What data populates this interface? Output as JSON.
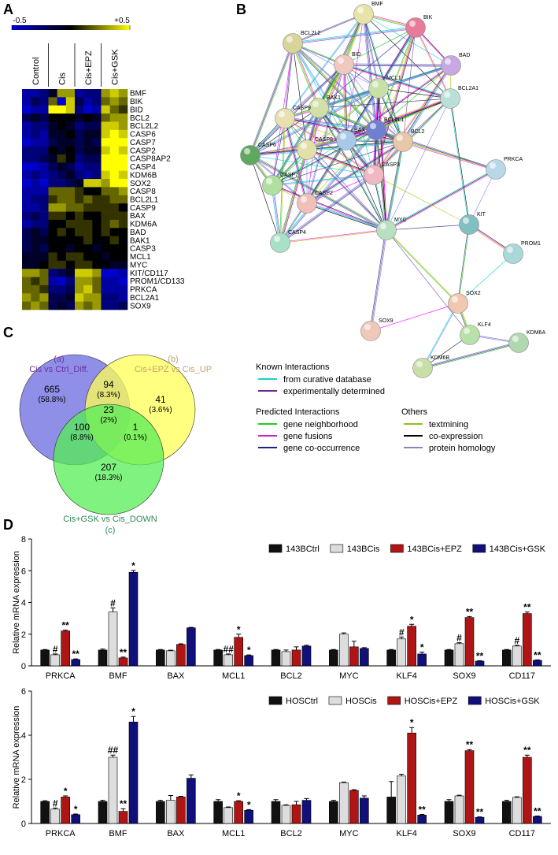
{
  "panels": [
    "A",
    "B",
    "C",
    "D"
  ],
  "chart_data": [
    {
      "type": "heatmap",
      "groups": [
        "Control",
        "Cis",
        "Cis+EPZ",
        "Cis+GSK"
      ],
      "rows": [
        "BMF",
        "BIK",
        "BID",
        "BCL2",
        "BCL2L2",
        "CASP6",
        "CASP7",
        "CASP2",
        "CASP8AP2",
        "CASP4",
        "KDM6B",
        "SOX2",
        "CASP8",
        "BCL2L1",
        "CASP9",
        "BAX",
        "KDM6A",
        "BAD",
        "BAK1",
        "CASP3",
        "MCL1",
        "MYC",
        "KIT/CD117",
        "PROM1/CD133",
        "PRKCA",
        "BCL2A1",
        "SOX9"
      ],
      "clim": [
        -0.5,
        0.5
      ],
      "cticks": [
        -0.5,
        {
          "value": 0.5,
          "label": "+0.5"
        }
      ],
      "colors": [
        "#0000cc",
        "#000000",
        "#ffff00"
      ],
      "values": [
        [
          -0.4,
          -0.4,
          -0.3,
          -0.1,
          0.3,
          0.3,
          -0.4,
          -0.3,
          -0.3,
          0.3,
          0.4,
          0.3
        ],
        [
          -0.4,
          -0.2,
          -0.3,
          0.2,
          -0.5,
          0.4,
          -0.2,
          -0.4,
          -0.3,
          0.2,
          0.3,
          0.2
        ],
        [
          -0.5,
          -0.4,
          -0.4,
          0.5,
          0.5,
          0.4,
          -0.3,
          -0.5,
          -0.4,
          0.4,
          0.2,
          0.1
        ],
        [
          -0.2,
          -0.1,
          -0.2,
          0,
          0,
          0,
          -0.1,
          0,
          -0.1,
          0.2,
          0.3,
          0.3
        ],
        [
          -0.4,
          -0.3,
          -0.3,
          -0.1,
          0,
          -0.1,
          -0.3,
          -0.2,
          -0.2,
          0.4,
          0.4,
          0.3
        ],
        [
          -0.4,
          -0.3,
          -0.4,
          -0.1,
          -0.1,
          0,
          -0.2,
          -0.1,
          -0.1,
          0.4,
          0.5,
          0.4
        ],
        [
          -0.5,
          -0.4,
          -0.4,
          -0.2,
          -0.1,
          -0.1,
          -0.2,
          -0.1,
          -0.2,
          0.5,
          0.5,
          0.5
        ],
        [
          -0.3,
          -0.3,
          -0.3,
          0,
          -0.1,
          0,
          -0.2,
          -0.1,
          -0.1,
          0.4,
          0.5,
          0.4
        ],
        [
          -0.3,
          -0.3,
          -0.2,
          -0.1,
          0.1,
          0,
          -0.3,
          -0.2,
          -0.2,
          0.5,
          0.5,
          0.5
        ],
        [
          -0.5,
          -0.5,
          -0.4,
          -0.2,
          -0.1,
          -0.2,
          -0.4,
          -0.3,
          -0.3,
          0.5,
          0.5,
          0.5
        ],
        [
          -0.4,
          -0.3,
          -0.4,
          -0.3,
          -0.2,
          -0.1,
          -0.3,
          -0.4,
          -0.3,
          0.4,
          0.5,
          0.4
        ],
        [
          -0.5,
          -0.4,
          -0.5,
          -0.3,
          -0.3,
          -0.2,
          -0.1,
          0.4,
          0.4,
          0.3,
          0.5,
          0.5
        ],
        [
          -0.4,
          -0.4,
          -0.4,
          0.2,
          0.2,
          0.2,
          0.1,
          0,
          0,
          0.2,
          0.2,
          0.3
        ],
        [
          -0.4,
          -0.3,
          -0.3,
          0.1,
          0.2,
          0.2,
          0.1,
          0.2,
          0.1,
          0.1,
          0.2,
          0.2
        ],
        [
          -0.4,
          -0.4,
          -0.3,
          0.3,
          0.3,
          0.2,
          0.2,
          0.1,
          0.1,
          0.1,
          0.1,
          0
        ],
        [
          -0.3,
          -0.2,
          -0.3,
          0.1,
          0.1,
          0,
          0.1,
          0,
          0,
          0.1,
          0.1,
          0.1
        ],
        [
          -0.4,
          -0.3,
          -0.3,
          0,
          0,
          0.1,
          0.1,
          0.1,
          0,
          0.1,
          0.2,
          0.1
        ],
        [
          -0.2,
          -0.1,
          -0.2,
          0,
          0.1,
          0,
          0.1,
          0.1,
          0,
          0.1,
          0,
          0
        ],
        [
          -0.2,
          -0.1,
          -0.1,
          0,
          0,
          0,
          0,
          0.1,
          0,
          0,
          0.1,
          0
        ],
        [
          -0.2,
          -0.1,
          -0.2,
          0,
          0,
          -0.1,
          0,
          0,
          -0.1,
          0,
          0,
          0
        ],
        [
          -0.1,
          -0.1,
          -0.1,
          0.1,
          0,
          0.1,
          0.1,
          0,
          0,
          -0.1,
          0,
          0
        ],
        [
          -0.1,
          -0.1,
          0,
          0.1,
          0.1,
          0,
          0.1,
          0.1,
          0,
          0,
          -0.1,
          -0.1
        ],
        [
          0.3,
          0.3,
          0.2,
          -0.3,
          -0.2,
          -0.1,
          0.4,
          0.4,
          0.3,
          -0.5,
          -0.5,
          -0.4
        ],
        [
          0.2,
          0.1,
          0.2,
          -0.4,
          -0.5,
          -0.3,
          0.3,
          0.3,
          0.2,
          -0.4,
          -0.4,
          -0.5
        ],
        [
          0.2,
          0.2,
          0.1,
          -0.3,
          -0.3,
          -0.2,
          0.3,
          0.4,
          0.2,
          -0.4,
          -0.4,
          -0.4
        ],
        [
          0.3,
          0.2,
          0.3,
          -0.2,
          -0.2,
          -0.1,
          0.4,
          0.3,
          0.3,
          -0.3,
          -0.3,
          -0.4
        ],
        [
          0.2,
          0.3,
          0.2,
          -0.2,
          -0.1,
          -0.2,
          0.3,
          0.2,
          0.3,
          -0.3,
          -0.3,
          -0.2
        ]
      ]
    },
    {
      "type": "bar",
      "ylabel": "Relative mRNA expression",
      "ylim": [
        0,
        8
      ],
      "yticks": [
        0,
        2,
        4,
        6,
        8
      ],
      "legend": "top-right",
      "categories": [
        "PRKCA",
        "BMF",
        "BAX",
        "MCL1",
        "BCL2",
        "MYC",
        "KLF4",
        "SOX9",
        "CD117"
      ],
      "series": [
        {
          "name": "143BCtrl",
          "color": "#111111",
          "values": [
            1,
            1,
            1,
            1,
            1,
            1,
            1,
            1,
            1
          ],
          "errors": [
            0.03,
            0.06,
            0.03,
            0.03,
            0.03,
            0.03,
            0.03,
            0.03,
            0.03
          ],
          "annotations": [
            null,
            null,
            null,
            null,
            null,
            null,
            null,
            null,
            null
          ]
        },
        {
          "name": "143BCis",
          "color": "#dddddd",
          "values": [
            0.7,
            3.4,
            0.95,
            0.7,
            0.9,
            2.0,
            1.7,
            1.4,
            1.25
          ],
          "errors": [
            0.05,
            0.25,
            0.04,
            0.05,
            0.1,
            0.08,
            0.12,
            0.06,
            0.05
          ],
          "annotations": [
            "#",
            "#",
            null,
            "##",
            null,
            null,
            "#",
            "#",
            "#"
          ]
        },
        {
          "name": "143BCis+EPZ",
          "color": "#b01515",
          "values": [
            2.2,
            0.5,
            1.35,
            1.8,
            1.0,
            1.2,
            2.5,
            3.05,
            3.3
          ],
          "errors": [
            0.05,
            0.05,
            0.04,
            0.2,
            0.2,
            0.35,
            0.12,
            0.06,
            0.1
          ],
          "annotations": [
            "**",
            "**",
            null,
            "*",
            null,
            null,
            "*",
            "**",
            "**"
          ]
        },
        {
          "name": "143BCis+GSK",
          "color": "#10107a",
          "values": [
            0.4,
            5.9,
            2.4,
            0.65,
            1.25,
            1.1,
            0.75,
            0.3,
            0.35
          ],
          "errors": [
            0.04,
            0.12,
            0.03,
            0.04,
            0.05,
            0.05,
            0.12,
            0.03,
            0.03
          ],
          "annotations": [
            "**",
            "*",
            null,
            "*",
            null,
            null,
            "*",
            "**",
            "**"
          ]
        }
      ]
    },
    {
      "type": "bar",
      "ylabel": "Relative mRNA expression",
      "ylim": [
        0,
        6
      ],
      "yticks": [
        0,
        2,
        4,
        6
      ],
      "legend": "top-right",
      "categories": [
        "PRKCA",
        "BMF",
        "BAX",
        "MCL1",
        "BCL2",
        "MYC",
        "KLF4",
        "SOX9",
        "CD117"
      ],
      "series": [
        {
          "name": "HOSCtrl",
          "color": "#111111",
          "values": [
            1,
            1,
            1,
            1,
            1,
            1,
            1.2,
            1,
            1
          ],
          "errors": [
            0.03,
            0.05,
            0.05,
            0.08,
            0.08,
            0.05,
            0.7,
            0.08,
            0.05
          ],
          "annotations": [
            null,
            null,
            null,
            null,
            null,
            null,
            null,
            null,
            null
          ]
        },
        {
          "name": "HOSCis",
          "color": "#dddddd",
          "values": [
            0.65,
            3.0,
            1.05,
            0.72,
            0.82,
            1.85,
            2.15,
            1.25,
            1.18
          ],
          "errors": [
            0.05,
            0.1,
            0.22,
            0.03,
            0.03,
            0.03,
            0.08,
            0.03,
            0.03
          ],
          "annotations": [
            "#",
            "##",
            null,
            null,
            null,
            null,
            null,
            null,
            null
          ]
        },
        {
          "name": "HOSCis+EPZ",
          "color": "#b01515",
          "values": [
            1.2,
            0.55,
            1.2,
            1.0,
            0.85,
            1.5,
            4.1,
            3.3,
            3.0
          ],
          "errors": [
            0.05,
            0.12,
            0.03,
            0.03,
            0.15,
            0.03,
            0.25,
            0.05,
            0.1
          ],
          "annotations": [
            "*",
            "**",
            null,
            "*",
            null,
            null,
            "*",
            "**",
            "**"
          ]
        },
        {
          "name": "HOSCis+GSK",
          "color": "#10107a",
          "values": [
            0.4,
            4.6,
            2.05,
            0.6,
            1.05,
            1.15,
            0.38,
            0.28,
            0.32
          ],
          "errors": [
            0.03,
            0.25,
            0.15,
            0.03,
            0.08,
            0.1,
            0.03,
            0.02,
            0.02
          ],
          "annotations": [
            "*",
            "*",
            null,
            "*",
            null,
            null,
            "**",
            "**",
            "**"
          ]
        }
      ]
    }
  ],
  "network": {
    "nodes": [
      "BMF",
      "BIK",
      "BCL2L2",
      "BAD",
      "BID",
      "MCL1",
      "BCL2A1",
      "BAK1",
      "CASP9",
      "BAX",
      "BCL2L1",
      "BCL2",
      "CASP8",
      "CASP6",
      "CASP3",
      "PRKCA",
      "CASP7",
      "CASP2",
      "MYC",
      "KIT",
      "PROM1",
      "CASP4",
      "SOX2",
      "KLF4",
      "KDM6A",
      "SOX9",
      "KDM6B"
    ],
    "legend": [
      {
        "title": "Known Interactions",
        "items": [
          "from curative database",
          "experimentally determined"
        ]
      },
      {
        "title": "Predicted Interactions",
        "items": [
          "gene neighborhood",
          "gene fusions",
          "gene co-occurrence"
        ]
      },
      {
        "title": "Others",
        "items": [
          "textmining",
          "co-expression",
          "protein homology"
        ]
      }
    ]
  },
  "venn": {
    "sets": [
      {
        "tag": "(a)",
        "name": "Cis vs Ctrl_Diff."
      },
      {
        "tag": "(b)",
        "name": "Cis+EPZ vs Cis_UP"
      },
      {
        "tag": "(c)",
        "name": "Cis+GSK vs Cis_DOWN"
      }
    ],
    "regions": [
      {
        "count": 665,
        "percent": "(58.8%)"
      },
      {
        "count": 94,
        "percent": "(8.3%)"
      },
      {
        "count": 41,
        "percent": "(3.6%)"
      },
      {
        "count": 23,
        "percent": "(2%)"
      },
      {
        "count": 100,
        "percent": "(8.8%)"
      },
      {
        "count": 1,
        "percent": "(0.1%)"
      },
      {
        "count": 207,
        "percent": "(18.3%)"
      }
    ]
  }
}
